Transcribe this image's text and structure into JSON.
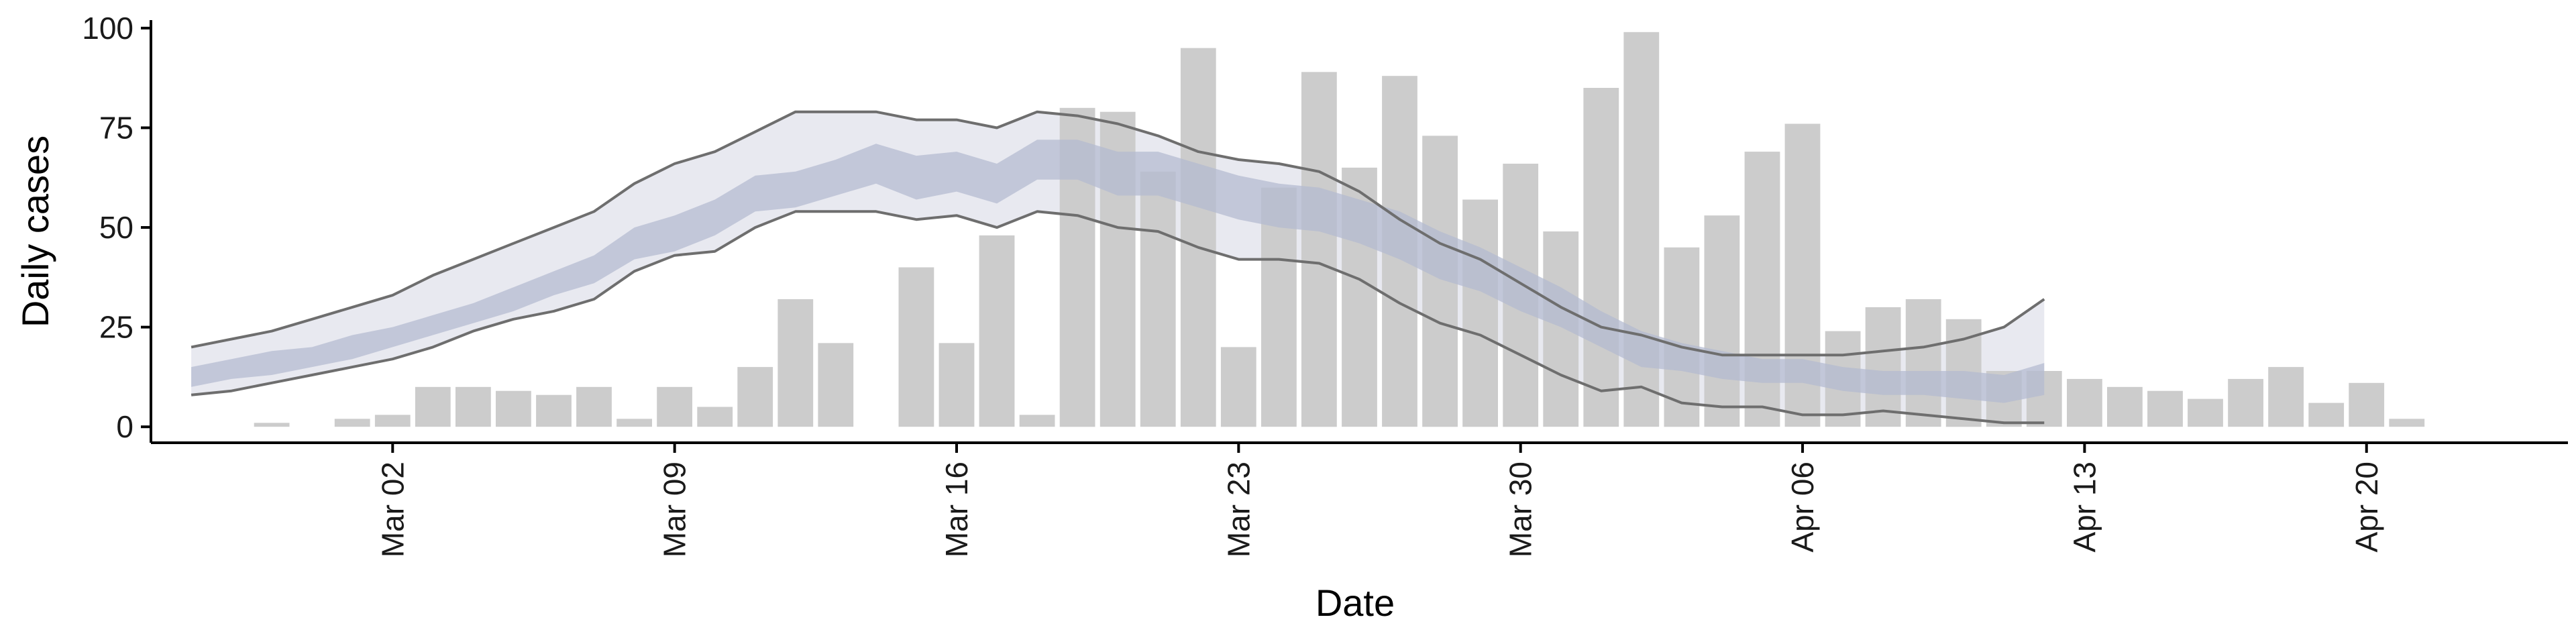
{
  "chart_data": {
    "type": "bar",
    "title": "",
    "xlabel": "Date",
    "ylabel": "Daily cases",
    "ylim": [
      -4,
      102
    ],
    "xlim": [
      "2020-02-25",
      "2020-04-25"
    ],
    "grid": false,
    "legend": "none",
    "x_ticks": [
      "Mar 02",
      "Mar 09",
      "Mar 16",
      "Mar 23",
      "Mar 30",
      "Apr 06",
      "Apr 13",
      "Apr 20"
    ],
    "x_tick_dates": [
      "2020-03-02",
      "2020-03-09",
      "2020-03-16",
      "2020-03-23",
      "2020-03-30",
      "2020-04-06",
      "2020-04-13",
      "2020-04-20"
    ],
    "y_ticks": [
      0,
      25,
      50,
      75,
      100
    ],
    "colors": {
      "bars": "#cccccc",
      "outer_band": "#e8e9f0",
      "inner_band": "#b3bad0",
      "outer_lines": "#6e6e6e",
      "axis": "#000000"
    },
    "series": [
      {
        "type": "bar",
        "dates": [
          "2020-02-28",
          "2020-03-01",
          "2020-03-02",
          "2020-03-03",
          "2020-03-04",
          "2020-03-05",
          "2020-03-06",
          "2020-03-07",
          "2020-03-08",
          "2020-03-09",
          "2020-03-10",
          "2020-03-11",
          "2020-03-12",
          "2020-03-13",
          "2020-03-15",
          "2020-03-16",
          "2020-03-17",
          "2020-03-18",
          "2020-03-19",
          "2020-03-20",
          "2020-03-21",
          "2020-03-22",
          "2020-03-23",
          "2020-03-24",
          "2020-03-25",
          "2020-03-26",
          "2020-03-27",
          "2020-03-28",
          "2020-03-29",
          "2020-03-30",
          "2020-03-31",
          "2020-04-01",
          "2020-04-02",
          "2020-04-03",
          "2020-04-04",
          "2020-04-05",
          "2020-04-06",
          "2020-04-07",
          "2020-04-08",
          "2020-04-09",
          "2020-04-10",
          "2020-04-11",
          "2020-04-12",
          "2020-04-13",
          "2020-04-14",
          "2020-04-15",
          "2020-04-16",
          "2020-04-17",
          "2020-04-18",
          "2020-04-19",
          "2020-04-20",
          "2020-04-21"
        ],
        "values": [
          1,
          2,
          3,
          10,
          10,
          9,
          8,
          10,
          2,
          10,
          5,
          15,
          32,
          21,
          40,
          21,
          48,
          3,
          80,
          79,
          64,
          95,
          20,
          60,
          89,
          65,
          88,
          73,
          57,
          66,
          49,
          85,
          99,
          45,
          53,
          69,
          76,
          24,
          30,
          32,
          27,
          14,
          14,
          12,
          10,
          9,
          7,
          12,
          15,
          6,
          11,
          2
        ]
      },
      {
        "type": "band",
        "level": "outer",
        "dates": [
          "2020-02-26",
          "2020-02-27",
          "2020-02-28",
          "2020-02-29",
          "2020-03-01",
          "2020-03-02",
          "2020-03-03",
          "2020-03-04",
          "2020-03-05",
          "2020-03-06",
          "2020-03-07",
          "2020-03-08",
          "2020-03-09",
          "2020-03-10",
          "2020-03-11",
          "2020-03-12",
          "2020-03-13",
          "2020-03-14",
          "2020-03-15",
          "2020-03-16",
          "2020-03-17",
          "2020-03-18",
          "2020-03-19",
          "2020-03-20",
          "2020-03-21",
          "2020-03-22",
          "2020-03-23",
          "2020-03-24",
          "2020-03-25",
          "2020-03-26",
          "2020-03-27",
          "2020-03-28",
          "2020-03-29",
          "2020-03-30",
          "2020-03-31",
          "2020-04-01",
          "2020-04-02",
          "2020-04-03",
          "2020-04-04",
          "2020-04-05",
          "2020-04-06",
          "2020-04-07",
          "2020-04-08",
          "2020-04-09",
          "2020-04-10",
          "2020-04-11",
          "2020-04-12"
        ],
        "upper": [
          20,
          22,
          24,
          27,
          30,
          33,
          38,
          42,
          46,
          50,
          54,
          61,
          66,
          69,
          74,
          79,
          79,
          79,
          77,
          77,
          75,
          79,
          78,
          76,
          73,
          69,
          67,
          66,
          64,
          59,
          52,
          46,
          42,
          36,
          30,
          25,
          23,
          20,
          18,
          18,
          18,
          18,
          19,
          20,
          22,
          25,
          32
        ],
        "lower": [
          8,
          9,
          11,
          13,
          15,
          17,
          20,
          24,
          27,
          29,
          32,
          39,
          43,
          44,
          50,
          54,
          54,
          54,
          52,
          53,
          50,
          54,
          53,
          50,
          49,
          45,
          42,
          42,
          41,
          37,
          31,
          26,
          23,
          18,
          13,
          9,
          10,
          6,
          5,
          5,
          3,
          3,
          4,
          3,
          2,
          1,
          1
        ]
      },
      {
        "type": "band",
        "level": "inner",
        "dates": [
          "2020-02-26",
          "2020-02-27",
          "2020-02-28",
          "2020-02-29",
          "2020-03-01",
          "2020-03-02",
          "2020-03-03",
          "2020-03-04",
          "2020-03-05",
          "2020-03-06",
          "2020-03-07",
          "2020-03-08",
          "2020-03-09",
          "2020-03-10",
          "2020-03-11",
          "2020-03-12",
          "2020-03-13",
          "2020-03-14",
          "2020-03-15",
          "2020-03-16",
          "2020-03-17",
          "2020-03-18",
          "2020-03-19",
          "2020-03-20",
          "2020-03-21",
          "2020-03-22",
          "2020-03-23",
          "2020-03-24",
          "2020-03-25",
          "2020-03-26",
          "2020-03-27",
          "2020-03-28",
          "2020-03-29",
          "2020-03-30",
          "2020-03-31",
          "2020-04-01",
          "2020-04-02",
          "2020-04-03",
          "2020-04-04",
          "2020-04-05",
          "2020-04-06",
          "2020-04-07",
          "2020-04-08",
          "2020-04-09",
          "2020-04-10",
          "2020-04-11",
          "2020-04-12"
        ],
        "upper": [
          15,
          17,
          19,
          20,
          23,
          25,
          28,
          31,
          35,
          39,
          43,
          50,
          53,
          57,
          63,
          64,
          67,
          71,
          68,
          69,
          66,
          72,
          72,
          69,
          69,
          66,
          63,
          61,
          60,
          57,
          54,
          49,
          45,
          40,
          35,
          29,
          24,
          21,
          19,
          17,
          17,
          15,
          14,
          14,
          14,
          13,
          16
        ],
        "lower": [
          10,
          12,
          13,
          15,
          17,
          20,
          23,
          26,
          29,
          33,
          36,
          42,
          44,
          48,
          54,
          55,
          58,
          61,
          57,
          59,
          56,
          62,
          62,
          58,
          58,
          55,
          52,
          50,
          49,
          46,
          42,
          37,
          34,
          29,
          25,
          20,
          15,
          14,
          12,
          11,
          11,
          9,
          8,
          8,
          7,
          6,
          8
        ]
      }
    ]
  }
}
